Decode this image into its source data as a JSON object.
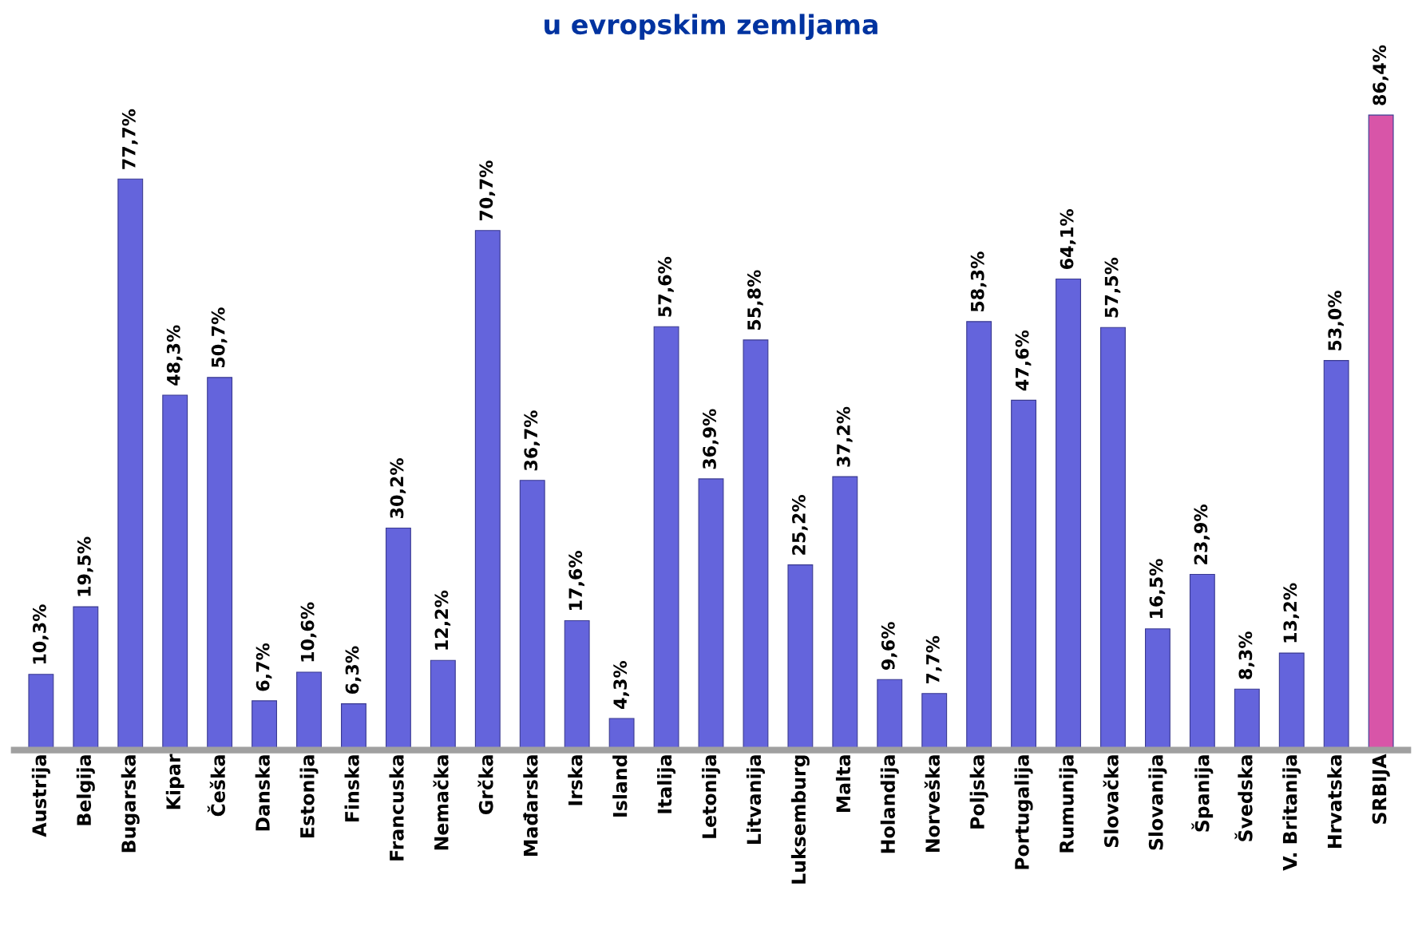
{
  "chart_data": {
    "type": "bar",
    "title": "u evropskim zemljama",
    "categories": [
      "Austrija",
      "Belgija",
      "Bugarska",
      "Kipar",
      "Češka",
      "Danska",
      "Estonija",
      "Finska",
      "Francuska",
      "Nemačka",
      "Grčka",
      "Mađarska",
      "Irska",
      "Island",
      "Italija",
      "Letonija",
      "Litvanija",
      "Luksemburg",
      "Malta",
      "Holandija",
      "Norveška",
      "Poljska",
      "Portugalija",
      "Rumunija",
      "Slovačka",
      "Slovanija",
      "Španija",
      "Švedska",
      "V. Britanija",
      "Hrvatska",
      "SRBIJA"
    ],
    "values": [
      10.3,
      19.5,
      77.7,
      48.3,
      50.7,
      6.7,
      10.6,
      6.3,
      30.2,
      12.2,
      70.7,
      36.7,
      17.6,
      4.3,
      57.6,
      36.9,
      55.8,
      25.2,
      37.2,
      9.6,
      7.7,
      58.3,
      47.6,
      64.1,
      57.5,
      16.5,
      23.9,
      8.3,
      13.2,
      53.0,
      86.4
    ],
    "value_labels": [
      "10,3%",
      "19,5%",
      "77,7%",
      "48,3%",
      "50,7%",
      "6,7%",
      "10,6%",
      "6,3%",
      "30,2%",
      "12,2%",
      "70,7%",
      "36,7%",
      "17,6%",
      "4,3%",
      "57,6%",
      "36,9%",
      "55,8%",
      "25,2%",
      "37,2%",
      "9,6%",
      "7,7%",
      "58,3%",
      "47,6%",
      "64,1%",
      "57,5%",
      "16,5%",
      "23,9%",
      "8,3%",
      "13,2%",
      "53,0%",
      "86,4%"
    ],
    "colors": [
      "#6464dc",
      "#6464dc",
      "#6464dc",
      "#6464dc",
      "#6464dc",
      "#6464dc",
      "#6464dc",
      "#6464dc",
      "#6464dc",
      "#6464dc",
      "#6464dc",
      "#6464dc",
      "#6464dc",
      "#6464dc",
      "#6464dc",
      "#6464dc",
      "#6464dc",
      "#6464dc",
      "#6464dc",
      "#6464dc",
      "#6464dc",
      "#6464dc",
      "#6464dc",
      "#6464dc",
      "#6464dc",
      "#6464dc",
      "#6464dc",
      "#6464dc",
      "#6464dc",
      "#6464dc",
      "#d855a8"
    ],
    "tick_labels": "x",
    "grid": false,
    "legend": false
  }
}
